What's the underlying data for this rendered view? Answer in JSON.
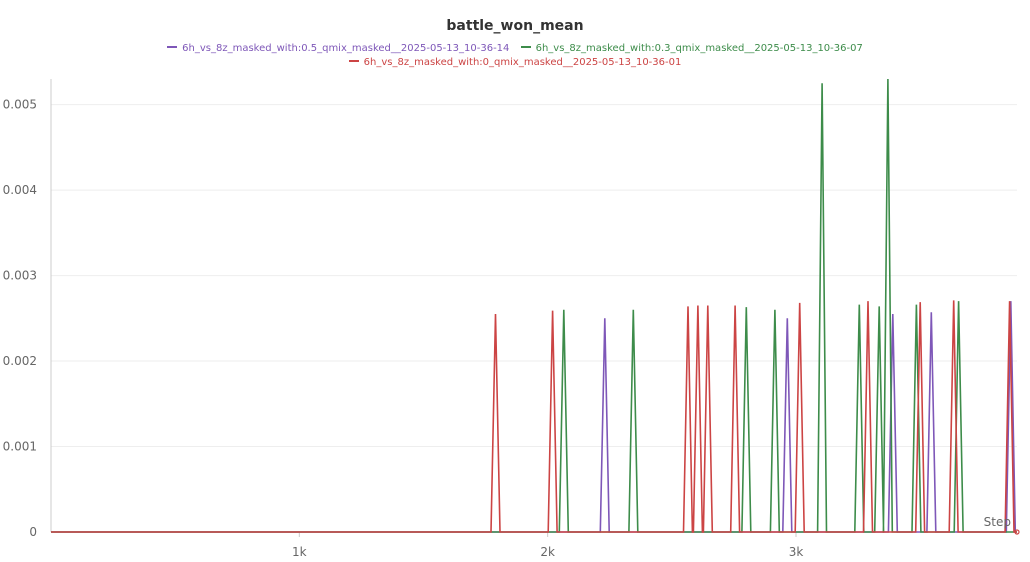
{
  "chart_data": {
    "type": "line",
    "title": "battle_won_mean",
    "x_axis_label": "Step",
    "x_ticks": [
      {
        "value": 1000,
        "label": "1k"
      },
      {
        "value": 2000,
        "label": "2k"
      },
      {
        "value": 3000,
        "label": "3k"
      }
    ],
    "y_ticks": [
      {
        "value": 0,
        "label": "0"
      },
      {
        "value": 0.001,
        "label": "0.001"
      },
      {
        "value": 0.002,
        "label": "0.002"
      },
      {
        "value": 0.003,
        "label": "0.003"
      },
      {
        "value": 0.004,
        "label": "0.004"
      },
      {
        "value": 0.005,
        "label": "0.005"
      }
    ],
    "xlim": [
      0,
      3890
    ],
    "ylim": [
      0,
      0.0053
    ],
    "grid": true,
    "legend_position": "top-center",
    "series": [
      {
        "name": "6h_vs_8z_masked_with:0.5_qmix_masked__2025-05-13_10-36-14",
        "color": "#7e57b8",
        "spike_half_width": 18,
        "spikes": [
          {
            "x": 2230,
            "y": 0.0025
          },
          {
            "x": 2965,
            "y": 0.0025
          },
          {
            "x": 3390,
            "y": 0.00255
          },
          {
            "x": 3545,
            "y": 0.00257
          },
          {
            "x": 3865,
            "y": 0.0027
          }
        ]
      },
      {
        "name": "6h_vs_8z_masked_with:0.3_qmix_masked__2025-05-13_10-36-07",
        "color": "#3d8c4a",
        "spike_half_width": 18,
        "spikes": [
          {
            "x": 2065,
            "y": 0.0026
          },
          {
            "x": 2345,
            "y": 0.0026
          },
          {
            "x": 2800,
            "y": 0.00263
          },
          {
            "x": 2915,
            "y": 0.0026
          },
          {
            "x": 3105,
            "y": 0.00525
          },
          {
            "x": 3255,
            "y": 0.00266
          },
          {
            "x": 3335,
            "y": 0.00264
          },
          {
            "x": 3370,
            "y": 0.0053
          },
          {
            "x": 3485,
            "y": 0.00266
          },
          {
            "x": 3655,
            "y": 0.0027
          }
        ]
      },
      {
        "name": "6h_vs_8z_masked_with:0_qmix_masked__2025-05-13_10-36-01",
        "color": "#cc4444",
        "spike_half_width": 18,
        "spikes": [
          {
            "x": 1790,
            "y": 0.00255
          },
          {
            "x": 2020,
            "y": 0.00259
          },
          {
            "x": 2565,
            "y": 0.00264
          },
          {
            "x": 2605,
            "y": 0.00265
          },
          {
            "x": 2645,
            "y": 0.00265
          },
          {
            "x": 2755,
            "y": 0.00265
          },
          {
            "x": 3015,
            "y": 0.00268
          },
          {
            "x": 3290,
            "y": 0.0027
          },
          {
            "x": 3500,
            "y": 0.00269
          },
          {
            "x": 3635,
            "y": 0.00271
          },
          {
            "x": 3860,
            "y": 0.0027
          }
        ]
      }
    ]
  }
}
